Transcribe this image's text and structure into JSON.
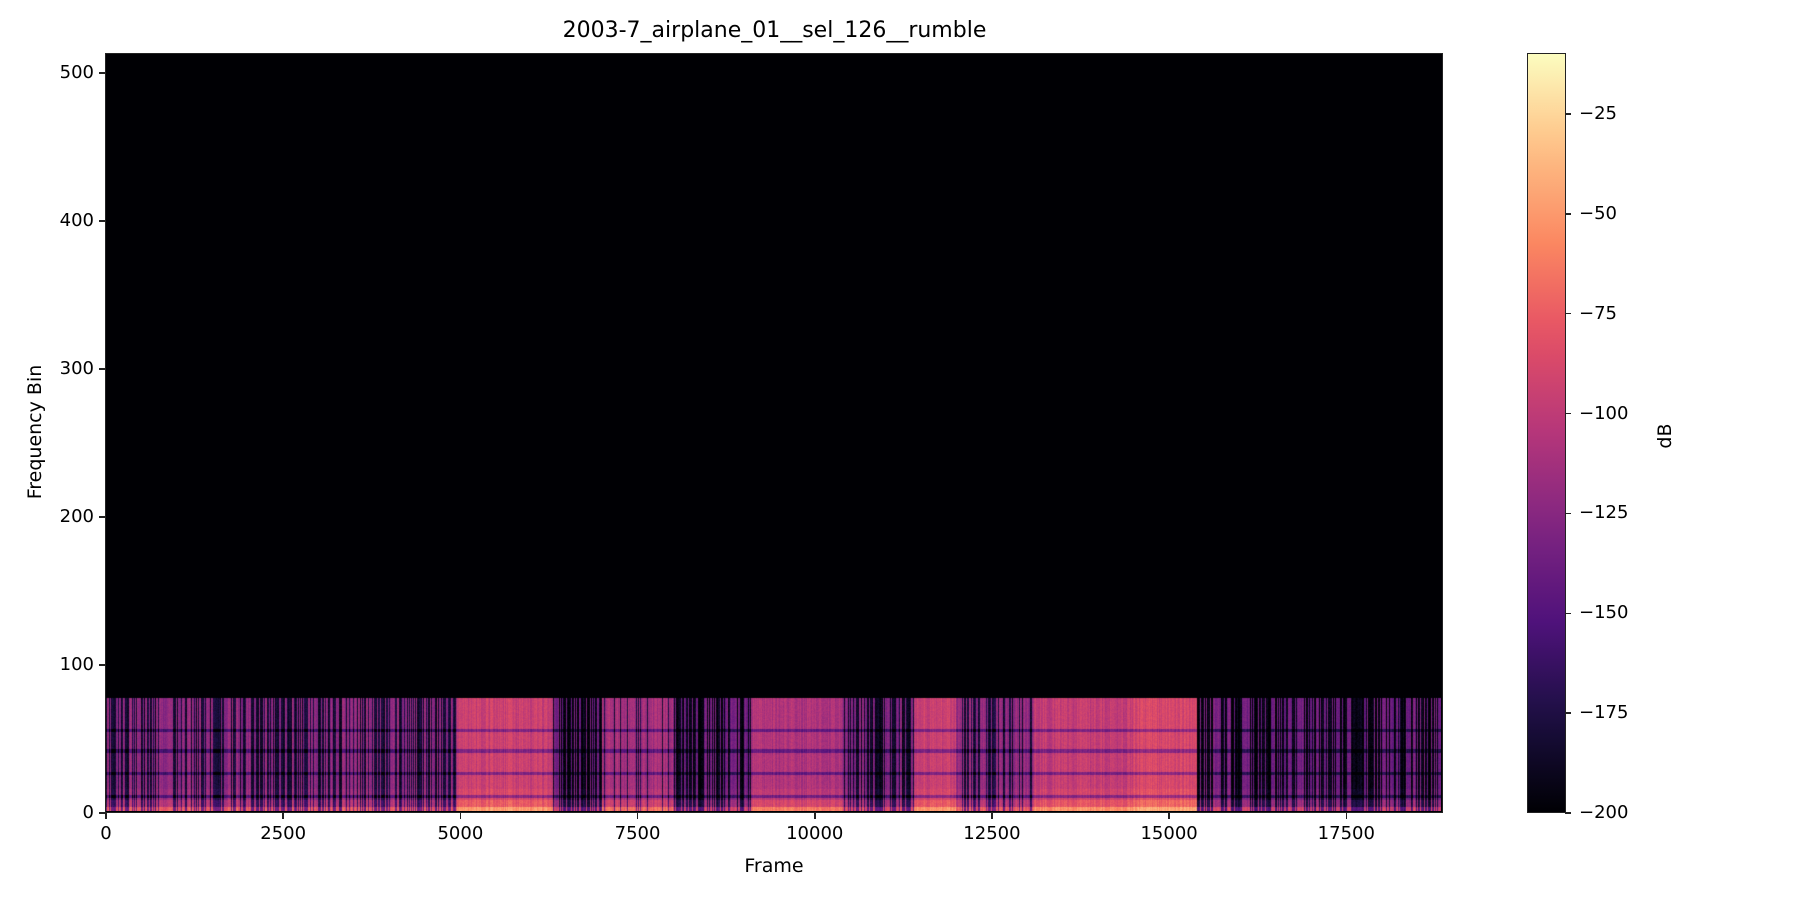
{
  "chart_data": {
    "type": "heatmap",
    "title": "2003-7_airplane_01__sel_126__rumble",
    "xlabel": "Frame",
    "ylabel": "Frequency Bin",
    "colorbar_label": "dB",
    "colormap": "magma",
    "xlim": [
      0,
      18850
    ],
    "ylim": [
      0,
      513
    ],
    "clim": [
      -200,
      -10
    ],
    "x_ticks": [
      0,
      2500,
      5000,
      7500,
      10000,
      12500,
      15000,
      17500
    ],
    "x_tick_labels": [
      "0",
      "2500",
      "5000",
      "7500",
      "10000",
      "12500",
      "15000",
      "17500"
    ],
    "y_ticks": [
      0,
      100,
      200,
      300,
      400,
      500
    ],
    "y_tick_labels": [
      "0",
      "100",
      "200",
      "300",
      "400",
      "500"
    ],
    "colorbar_ticks": [
      -25,
      -50,
      -75,
      -100,
      -125,
      -150,
      -175,
      -200
    ],
    "colorbar_tick_labels": [
      "−25",
      "−50",
      "−75",
      "−100",
      "−125",
      "−150",
      "−175",
      "−200"
    ],
    "active_band_max_bin": 76,
    "above_band_level_db": -200,
    "dark_horizontal_lines_bins": [
      10,
      26,
      41,
      55
    ],
    "segments": [
      {
        "start": 0,
        "end": 4950,
        "level_db": -122,
        "density": 0.55,
        "note": "intermittent"
      },
      {
        "start": 4950,
        "end": 6300,
        "level_db": -95,
        "density": 1.0,
        "note": "loud"
      },
      {
        "start": 6300,
        "end": 7000,
        "level_db": -135,
        "density": 0.4,
        "note": "intermittent"
      },
      {
        "start": 7000,
        "end": 8000,
        "level_db": -112,
        "density": 0.9,
        "note": "moderate"
      },
      {
        "start": 8000,
        "end": 9100,
        "level_db": -135,
        "density": 0.45,
        "note": "intermittent"
      },
      {
        "start": 9100,
        "end": 10400,
        "level_db": -108,
        "density": 1.0,
        "note": "moderate"
      },
      {
        "start": 10400,
        "end": 11400,
        "level_db": -128,
        "density": 0.5,
        "note": "intermittent"
      },
      {
        "start": 11400,
        "end": 12000,
        "level_db": -95,
        "density": 1.0,
        "note": "loud"
      },
      {
        "start": 12000,
        "end": 13100,
        "level_db": -120,
        "density": 0.6,
        "note": "intermittent"
      },
      {
        "start": 13100,
        "end": 14500,
        "level_db": -98,
        "density": 1.0,
        "note": "loud"
      },
      {
        "start": 14500,
        "end": 15400,
        "level_db": -88,
        "density": 1.0,
        "note": "loudest"
      },
      {
        "start": 15400,
        "end": 18850,
        "level_db": -135,
        "density": 0.45,
        "note": "intermittent"
      }
    ]
  }
}
